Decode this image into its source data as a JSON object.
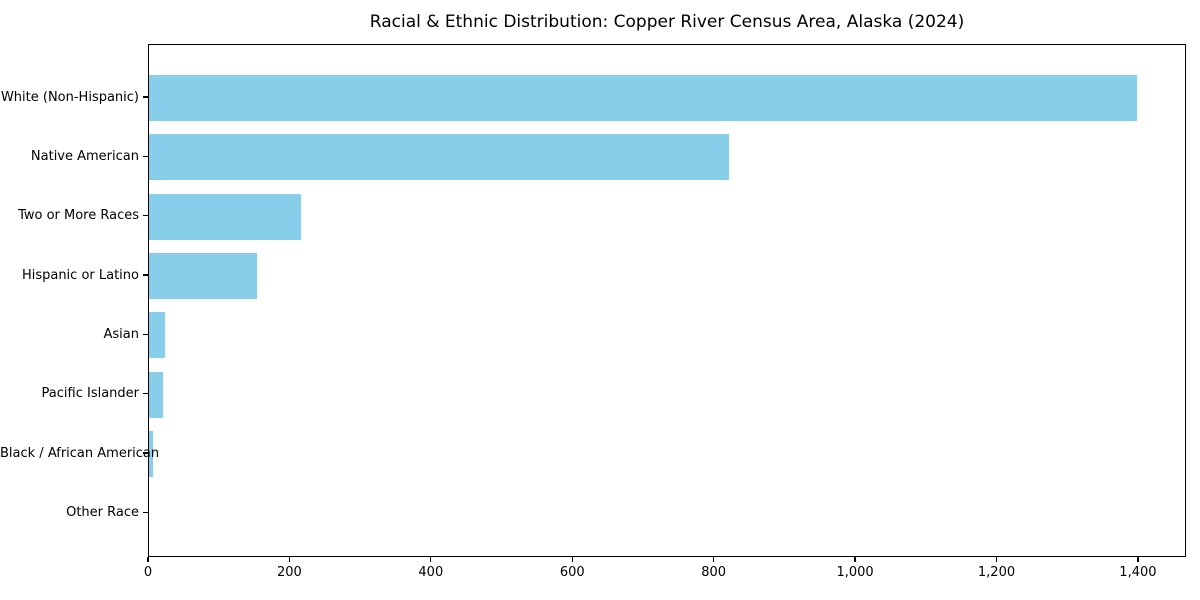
{
  "chart_data": {
    "type": "bar",
    "orientation": "horizontal",
    "title": "Racial & Ethnic Distribution: Copper River Census Area, Alaska (2024)",
    "xlabel": "",
    "ylabel": "",
    "categories": [
      "White (Non-Hispanic)",
      "Native American",
      "Two or More Races",
      "Hispanic or Latino",
      "Asian",
      "Pacific Islander",
      "Black / African American",
      "Other Race"
    ],
    "values": [
      1397,
      820,
      215,
      152,
      23,
      20,
      5,
      0
    ],
    "xlim": [
      0,
      1468
    ],
    "xticks": [
      0,
      200,
      400,
      600,
      800,
      1000,
      1200,
      1400
    ],
    "xtick_labels": [
      "0",
      "200",
      "400",
      "600",
      "800",
      "1,000",
      "1,200",
      "1,400"
    ],
    "grid": false,
    "legend": false,
    "colors": {
      "bar": "#87CEEB",
      "spine": "#000000",
      "text": "#000000",
      "background": "#ffffff"
    }
  }
}
